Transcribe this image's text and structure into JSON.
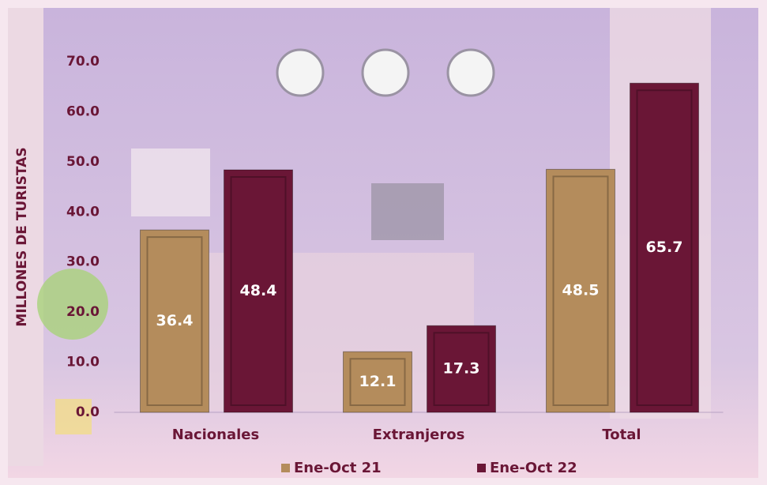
{
  "chart_data": {
    "type": "bar",
    "y_label": "MILLONES DE TURISTAS",
    "categories": [
      "Nacionales",
      "Extranjeros",
      "Total"
    ],
    "series": [
      {
        "name": "Ene-Oct 21",
        "color": "#b48c5c",
        "values": [
          36.4,
          12.1,
          48.5
        ]
      },
      {
        "name": "Ene-Oct 22",
        "color": "#6a1636",
        "values": [
          48.4,
          17.3,
          65.7
        ]
      }
    ],
    "ylim": [
      0,
      70
    ],
    "yticks": [
      {
        "value": 0,
        "label": "0.0"
      },
      {
        "value": 10,
        "label": "10.0"
      },
      {
        "value": 20,
        "label": "20.0"
      },
      {
        "value": 30,
        "label": "30.0"
      },
      {
        "value": 40,
        "label": "40.0"
      },
      {
        "value": 50,
        "label": "50.0"
      },
      {
        "value": 60,
        "label": "60.0"
      },
      {
        "value": 70,
        "label": "70.0"
      }
    ],
    "legend": "bottom"
  }
}
